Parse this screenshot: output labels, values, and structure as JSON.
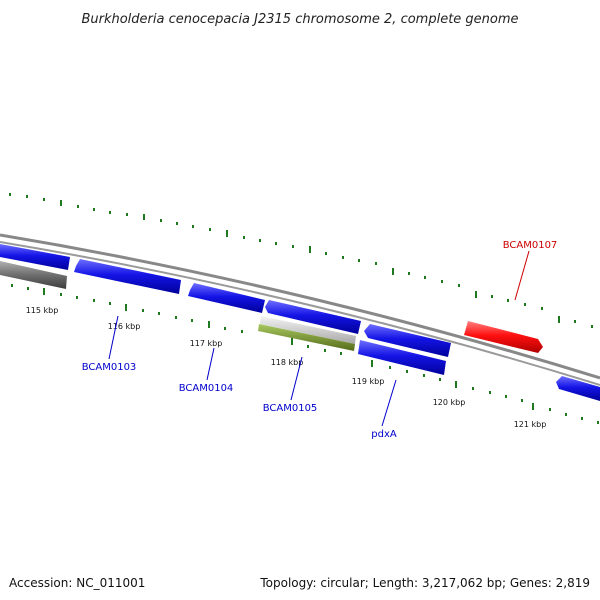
{
  "title": "Burkholderia cenocepacia J2315 chromosome 2, complete genome",
  "accession_text": "Accession: NC_011001",
  "summary_text": "Topology: circular; Length: 3,217,062 bp; Genes: 2,819",
  "ticks": [
    "115 kbp",
    "116 kbp",
    "117 kbp",
    "118 kbp",
    "119 kbp",
    "120 kbp",
    "121 kbp"
  ],
  "gene_labels": [
    {
      "id": "BCAM0103",
      "label": "BCAM0103",
      "color": "#0000cc"
    },
    {
      "id": "BCAM0104",
      "label": "BCAM0104",
      "color": "#0000cc"
    },
    {
      "id": "BCAM0105",
      "label": "BCAM0105",
      "color": "#0000cc"
    },
    {
      "id": "pdxA",
      "label": "pdxA",
      "color": "#0000cc"
    },
    {
      "id": "BCAM0107",
      "label": "BCAM0107",
      "color": "#cc0000"
    }
  ],
  "colors": {
    "cds": "#1010e0",
    "highlight_gene": "#ff1a1a",
    "backbone": "#8c8c8c",
    "tick_marks": "#1f7a1f",
    "rna_gray": "#c8c8c8",
    "rna_green": "#6b8e23",
    "dark_gray": "#707070"
  }
}
